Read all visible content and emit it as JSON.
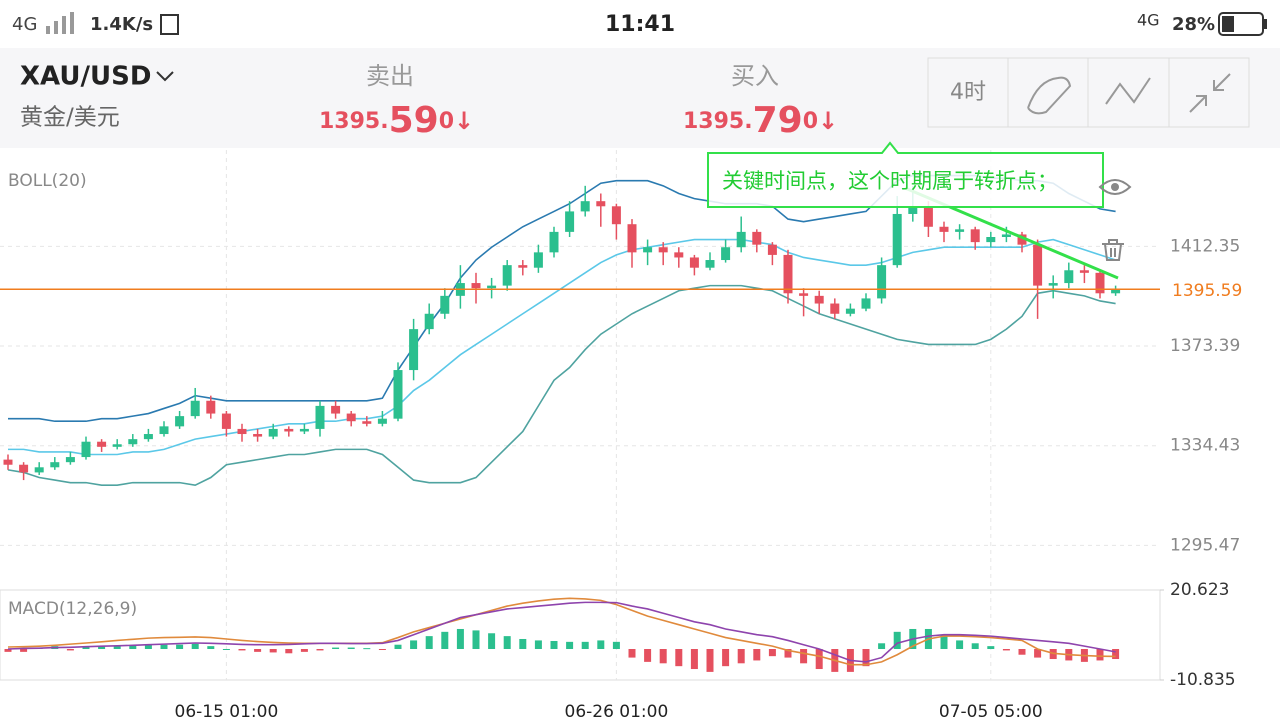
{
  "status_bar": {
    "network": "4G",
    "speed": "1.4K/s",
    "time": "11:41",
    "network2": "4G",
    "battery": "28%"
  },
  "header": {
    "symbol": "XAU/USD",
    "name": "黄金/美元",
    "sell": {
      "label": "卖出",
      "price_prefix": "1395.",
      "price_main": "59",
      "price_suffix": "0",
      "arrow": "↓"
    },
    "buy": {
      "label": "买入",
      "price_prefix": "1395.",
      "price_main": "79",
      "price_suffix": "0",
      "arrow": "↓"
    },
    "period": "4时"
  },
  "chart": {
    "type": "candlestick",
    "indicator": "BOLL(20)",
    "annotation": "关键时间点，这个时期属于转折点；",
    "up_color": "#2bbf8e",
    "down_color": "#e5505f",
    "categories": [
      null,
      null,
      null,
      null,
      null,
      null,
      null,
      null,
      null,
      null,
      null,
      null,
      null,
      null,
      "06-15 01:00",
      null,
      null,
      null,
      null,
      null,
      null,
      null,
      null,
      null,
      null,
      null,
      null,
      null,
      null,
      null,
      null,
      null,
      null,
      null,
      null,
      null,
      null,
      null,
      null,
      "06-26 01:00",
      null,
      null,
      null,
      null,
      null,
      null,
      null,
      null,
      null,
      null,
      null,
      null,
      null,
      null,
      null,
      null,
      null,
      null,
      null,
      null,
      null,
      null,
      null,
      "07-05 05:00",
      null,
      null,
      null,
      null,
      null,
      null,
      null,
      null
    ],
    "candles": [
      [
        1329,
        1331,
        1325,
        1327
      ],
      [
        1327,
        1328,
        1321,
        1324
      ],
      [
        1324,
        1328,
        1323,
        1326
      ],
      [
        1326,
        1330,
        1325,
        1328
      ],
      [
        1328,
        1332,
        1327,
        1330
      ],
      [
        1330,
        1338,
        1329,
        1336
      ],
      [
        1336,
        1337,
        1332,
        1334
      ],
      [
        1334,
        1337,
        1333,
        1335
      ],
      [
        1335,
        1339,
        1334,
        1337
      ],
      [
        1337,
        1341,
        1336,
        1339
      ],
      [
        1339,
        1344,
        1338,
        1342
      ],
      [
        1342,
        1348,
        1341,
        1346
      ],
      [
        1346,
        1357,
        1345,
        1352
      ],
      [
        1352,
        1354,
        1345,
        1347
      ],
      [
        1347,
        1348,
        1338,
        1341
      ],
      [
        1341,
        1343,
        1336,
        1339
      ],
      [
        1339,
        1341,
        1336,
        1338
      ],
      [
        1338,
        1343,
        1337,
        1341
      ],
      [
        1341,
        1342,
        1338,
        1340
      ],
      [
        1340,
        1343,
        1339,
        1341
      ],
      [
        1341,
        1352,
        1338,
        1350
      ],
      [
        1350,
        1352,
        1345,
        1347
      ],
      [
        1347,
        1348,
        1342,
        1344
      ],
      [
        1344,
        1346,
        1342,
        1343
      ],
      [
        1343,
        1348,
        1342,
        1345
      ],
      [
        1345,
        1367,
        1344,
        1364
      ],
      [
        1364,
        1384,
        1360,
        1380
      ],
      [
        1380,
        1390,
        1378,
        1386
      ],
      [
        1386,
        1396,
        1384,
        1393
      ],
      [
        1393,
        1405,
        1388,
        1398
      ],
      [
        1398,
        1402,
        1390,
        1396
      ],
      [
        1396,
        1400,
        1392,
        1397
      ],
      [
        1397,
        1407,
        1395,
        1405
      ],
      [
        1405,
        1407,
        1401,
        1404
      ],
      [
        1404,
        1413,
        1402,
        1410
      ],
      [
        1410,
        1420,
        1408,
        1418
      ],
      [
        1418,
        1430,
        1416,
        1426
      ],
      [
        1426,
        1436,
        1424,
        1430
      ],
      [
        1430,
        1433,
        1420,
        1428
      ],
      [
        1428,
        1429,
        1415,
        1421
      ],
      [
        1421,
        1423,
        1404,
        1410
      ],
      [
        1410,
        1415,
        1405,
        1412
      ],
      [
        1412,
        1414,
        1405,
        1410
      ],
      [
        1410,
        1412,
        1404,
        1408
      ],
      [
        1408,
        1409,
        1401,
        1404
      ],
      [
        1404,
        1410,
        1403,
        1407
      ],
      [
        1407,
        1415,
        1406,
        1412
      ],
      [
        1412,
        1424,
        1410,
        1418
      ],
      [
        1418,
        1419,
        1410,
        1413
      ],
      [
        1413,
        1414,
        1405,
        1409
      ],
      [
        1409,
        1411,
        1390,
        1394
      ],
      [
        1394,
        1396,
        1385,
        1393
      ],
      [
        1393,
        1395,
        1386,
        1390
      ],
      [
        1390,
        1392,
        1384,
        1386
      ],
      [
        1386,
        1390,
        1385,
        1388
      ],
      [
        1388,
        1394,
        1387,
        1392
      ],
      [
        1392,
        1408,
        1390,
        1405
      ],
      [
        1405,
        1432,
        1404,
        1425
      ],
      [
        1425,
        1436,
        1422,
        1428
      ],
      [
        1428,
        1430,
        1416,
        1420
      ],
      [
        1420,
        1422,
        1414,
        1418
      ],
      [
        1418,
        1421,
        1415,
        1419
      ],
      [
        1419,
        1420,
        1411,
        1414
      ],
      [
        1414,
        1418,
        1412,
        1416
      ],
      [
        1416,
        1420,
        1414,
        1417
      ],
      [
        1417,
        1418,
        1410,
        1413
      ],
      [
        1413,
        1415,
        1384,
        1397
      ],
      [
        1397,
        1401,
        1392,
        1398
      ],
      [
        1398,
        1406,
        1396,
        1403
      ],
      [
        1403,
        1405,
        1398,
        1402
      ],
      [
        1402,
        1403,
        1392,
        1394
      ],
      [
        1394,
        1397,
        1393,
        1395.59
      ]
    ],
    "boll": {
      "upper_color": "#2a7ab0",
      "mid_color": "#5bc8e8",
      "lower_color": "#4fa3a0",
      "upper": [
        1345,
        1345,
        1345,
        1344,
        1344,
        1344,
        1345,
        1345,
        1346,
        1347,
        1349,
        1351,
        1354,
        1353,
        1352,
        1352,
        1352,
        1352,
        1352,
        1352,
        1352,
        1352,
        1352,
        1352,
        1353,
        1364,
        1373,
        1382,
        1390,
        1400,
        1407,
        1412,
        1416,
        1420,
        1423,
        1426,
        1429,
        1433,
        1437,
        1438,
        1438,
        1438,
        1436,
        1433,
        1431,
        1430,
        1429,
        1429,
        1429,
        1428,
        1423,
        1422,
        1423,
        1424,
        1425,
        1426,
        1432,
        1438,
        1440,
        1440,
        1440,
        1440,
        1440,
        1439,
        1439,
        1438,
        1438,
        1437,
        1433,
        1430,
        1427,
        1426
      ],
      "mid": [
        1333,
        1333,
        1332,
        1332,
        1332,
        1331,
        1331,
        1331,
        1332,
        1332,
        1333,
        1335,
        1337,
        1338,
        1339,
        1340,
        1341,
        1342,
        1343,
        1343,
        1344,
        1344,
        1345,
        1345,
        1346,
        1350,
        1356,
        1360,
        1365,
        1370,
        1374,
        1378,
        1382,
        1386,
        1390,
        1394,
        1398,
        1402,
        1406,
        1409,
        1411,
        1412,
        1413,
        1414,
        1415,
        1415,
        1415,
        1415,
        1414,
        1413,
        1410,
        1408,
        1407,
        1406,
        1405,
        1405,
        1406,
        1408,
        1410,
        1411,
        1412,
        1412,
        1412,
        1412,
        1412,
        1412,
        1414,
        1415,
        1413,
        1411,
        1409,
        1407
      ],
      "lower": [
        1325,
        1324,
        1322,
        1321,
        1320,
        1320,
        1319,
        1319,
        1320,
        1320,
        1320,
        1320,
        1319,
        1322,
        1327,
        1328,
        1329,
        1330,
        1331,
        1331,
        1332,
        1333,
        1333,
        1333,
        1331,
        1326,
        1321,
        1320,
        1320,
        1320,
        1322,
        1328,
        1334,
        1340,
        1350,
        1360,
        1365,
        1372,
        1378,
        1382,
        1386,
        1389,
        1392,
        1395,
        1396,
        1397,
        1397,
        1397,
        1396,
        1395,
        1392,
        1389,
        1386,
        1384,
        1382,
        1380,
        1378,
        1376,
        1375,
        1374,
        1374,
        1374,
        1374,
        1376,
        1380,
        1385,
        1394,
        1395,
        1394,
        1393,
        1391,
        1390
      ]
    },
    "ylim": [
      1280,
      1450
    ],
    "yticks": [
      1412.35,
      1373.39,
      1334.43,
      1295.47
    ],
    "grid": true,
    "current_price": 1395.59,
    "current_color": "#f07c1e"
  },
  "macd": {
    "label": "MACD(12,26,9)",
    "ylim": [
      -10.835,
      20.623
    ],
    "yticks": [
      20.623,
      -10.835
    ],
    "macd_color": "#8e44ad",
    "signal_color": "#e08a3c",
    "histogram": [
      -1,
      -1,
      0.5,
      1,
      -0.5,
      1,
      1,
      1,
      1.2,
      1.5,
      1.5,
      1.5,
      1.8,
      1,
      0,
      -0.5,
      -1,
      -1.2,
      -1.5,
      -1,
      -0.5,
      0.5,
      0.5,
      0.3,
      -0.2,
      1.5,
      3,
      4.5,
      6,
      7,
      6.5,
      5.5,
      4.5,
      3.5,
      3,
      2.8,
      2.5,
      2.5,
      3,
      2.5,
      -3,
      -4.5,
      -5,
      -6,
      -7,
      -8,
      -6,
      -5,
      -4,
      -2.5,
      -3,
      -5,
      -7,
      -8,
      -8,
      -6,
      2,
      6,
      7,
      7,
      5,
      3,
      2,
      1,
      -0.5,
      -2,
      -3,
      -3.5,
      -4,
      -4.5,
      -4,
      -3.5
    ],
    "macd": [
      0,
      0.2,
      0.3,
      0.5,
      0.6,
      0.8,
      1,
      1.1,
      1.3,
      1.5,
      1.7,
      1.9,
      2.1,
      2,
      1.8,
      1.6,
      1.5,
      1.5,
      1.6,
      1.8,
      2,
      2,
      1.9,
      1.9,
      2,
      3,
      5,
      7,
      9,
      11,
      12,
      13,
      14,
      14.5,
      15,
      15.5,
      16,
      16.3,
      16.3,
      16.2,
      15,
      14,
      12.5,
      11,
      9.5,
      8.5,
      7,
      6,
      5,
      4.3,
      3,
      1.5,
      0,
      -2,
      -4,
      -4.5,
      -3,
      2,
      3.5,
      4.5,
      5,
      5,
      4.8,
      4.5,
      4,
      3.5,
      3,
      2.5,
      2,
      1,
      0,
      -1
    ],
    "signal": [
      0.7,
      0.8,
      1,
      1.3,
      1.7,
      2.1,
      2.5,
      3,
      3.4,
      3.8,
      4,
      4.1,
      4.2,
      4,
      3.5,
      3,
      2.6,
      2.3,
      2.1,
      2,
      2,
      2,
      2,
      2,
      2.2,
      4,
      6,
      7.5,
      9,
      10.5,
      12,
      13.5,
      15,
      16,
      16.8,
      17.4,
      17.7,
      17.5,
      17,
      15.5,
      13.5,
      11.5,
      10,
      8.5,
      7,
      5.5,
      4,
      3,
      2,
      1,
      -0.5,
      -1.5,
      -2.5,
      -4,
      -5.5,
      -5.5,
      -4.5,
      -2,
      1,
      3.5,
      4.5,
      4.5,
      4.3,
      4,
      3.5,
      3,
      0,
      -1.5,
      -2,
      -2.3,
      -2.5,
      -2.6
    ]
  }
}
